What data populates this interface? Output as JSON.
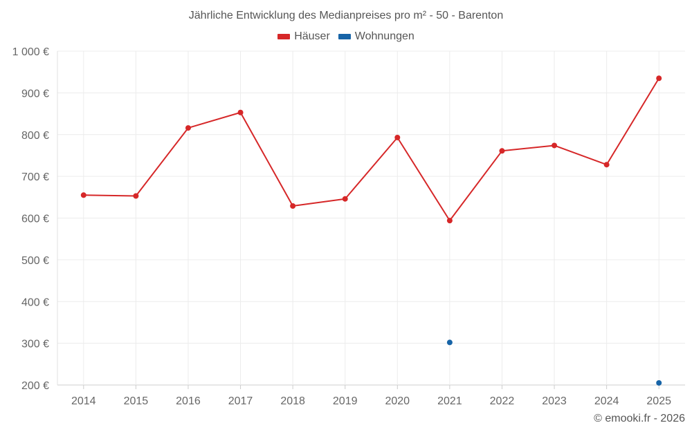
{
  "chart_data": {
    "type": "line",
    "title": "Jährliche Entwicklung des Medianpreises pro m² - 50 - Barenton",
    "categories": [
      "2014",
      "2015",
      "2016",
      "2017",
      "2018",
      "2019",
      "2020",
      "2021",
      "2022",
      "2023",
      "2024",
      "2025"
    ],
    "series": [
      {
        "name": "Häuser",
        "color": "#d62728",
        "values": [
          655,
          653,
          816,
          853,
          629,
          646,
          793,
          594,
          761,
          774,
          728,
          935
        ]
      },
      {
        "name": "Wohnungen",
        "color": "#1764a7",
        "values": [
          null,
          null,
          null,
          null,
          null,
          null,
          null,
          302,
          null,
          null,
          null,
          205
        ]
      }
    ],
    "ylim": [
      200,
      1000
    ],
    "yticks": [
      200,
      300,
      400,
      500,
      600,
      700,
      800,
      900,
      1000
    ],
    "ytick_labels": [
      "200 €",
      "300 €",
      "400 €",
      "500 €",
      "600 €",
      "700 €",
      "800 €",
      "900 €",
      "1 000 €"
    ],
    "xlabel": "",
    "ylabel": "",
    "grid": true,
    "legend_position": "top-center"
  },
  "credit": "© emooki.fr - 2026"
}
